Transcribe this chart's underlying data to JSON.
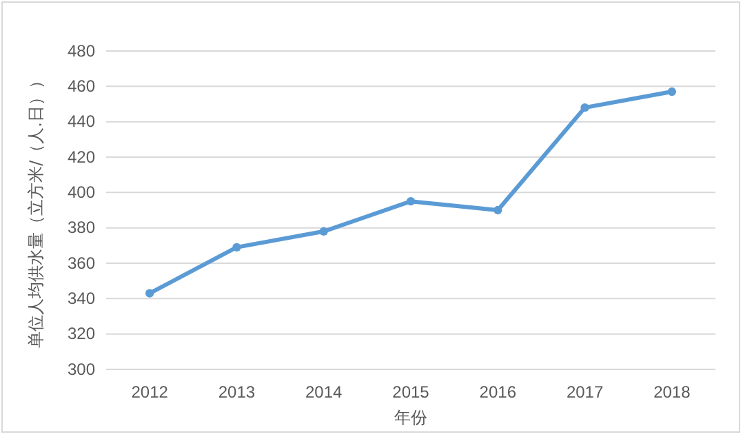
{
  "chart_data": {
    "type": "line",
    "xlabel": "年份",
    "ylabel": "单位人均供水量（立方米/（人.日））",
    "categories": [
      "2012",
      "2013",
      "2014",
      "2015",
      "2016",
      "2017",
      "2018"
    ],
    "series": [
      {
        "color": "#5b9bd5",
        "values": [
          343,
          369,
          378,
          395,
          390,
          448,
          457
        ]
      }
    ],
    "ylim": [
      300,
      480
    ],
    "yticks": [
      300,
      320,
      340,
      360,
      380,
      400,
      420,
      440,
      460,
      480
    ],
    "grid": "y",
    "marker": "circle",
    "line_style": "solid"
  }
}
